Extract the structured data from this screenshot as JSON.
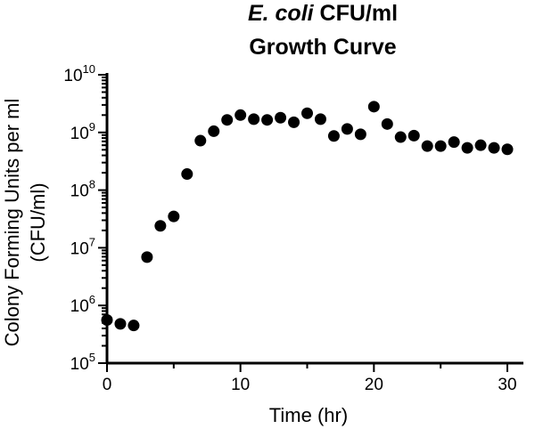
{
  "chart_data": {
    "type": "scatter",
    "title_italic": "E. coli",
    "title_rest": "CFU/ml",
    "subtitle": "Growth Curve",
    "xlabel": "Time (hr)",
    "ylabel_line1": "Colony Forming Units per ml",
    "ylabel_line2": "(CFU/ml)",
    "xlim": [
      0,
      31
    ],
    "ylim": [
      100000,
      10000000000
    ],
    "yscale": "log",
    "x_ticks": [
      0,
      10,
      20,
      30
    ],
    "x_tick_labels": [
      "0",
      "10",
      "20",
      "30"
    ],
    "y_ticks": [
      100000,
      1000000,
      10000000,
      100000000,
      1000000000,
      10000000000
    ],
    "y_tick_labels": [
      {
        "base": "10",
        "exp": "5"
      },
      {
        "base": "10",
        "exp": "6"
      },
      {
        "base": "10",
        "exp": "7"
      },
      {
        "base": "10",
        "exp": "8"
      },
      {
        "base": "10",
        "exp": "9"
      },
      {
        "base": "10",
        "exp": "10"
      }
    ],
    "grid": false,
    "marker_color": "#000000",
    "points": [
      {
        "x": 0,
        "y": 560000
      },
      {
        "x": 1,
        "y": 480000
      },
      {
        "x": 2,
        "y": 450000
      },
      {
        "x": 3,
        "y": 6900000
      },
      {
        "x": 4,
        "y": 24000000
      },
      {
        "x": 5,
        "y": 35000000
      },
      {
        "x": 6,
        "y": 190000000
      },
      {
        "x": 7,
        "y": 720000000
      },
      {
        "x": 8,
        "y": 1050000000
      },
      {
        "x": 9,
        "y": 1650000000
      },
      {
        "x": 10,
        "y": 2000000000
      },
      {
        "x": 11,
        "y": 1700000000
      },
      {
        "x": 12,
        "y": 1650000000
      },
      {
        "x": 13,
        "y": 1800000000
      },
      {
        "x": 14,
        "y": 1500000000
      },
      {
        "x": 15,
        "y": 2150000000
      },
      {
        "x": 16,
        "y": 1700000000
      },
      {
        "x": 17,
        "y": 870000000
      },
      {
        "x": 18,
        "y": 1150000000
      },
      {
        "x": 19,
        "y": 930000000
      },
      {
        "x": 20,
        "y": 2800000000
      },
      {
        "x": 21,
        "y": 1400000000
      },
      {
        "x": 22,
        "y": 830000000
      },
      {
        "x": 23,
        "y": 880000000
      },
      {
        "x": 24,
        "y": 580000000
      },
      {
        "x": 25,
        "y": 580000000
      },
      {
        "x": 26,
        "y": 680000000
      },
      {
        "x": 27,
        "y": 540000000
      },
      {
        "x": 28,
        "y": 600000000
      },
      {
        "x": 29,
        "y": 540000000
      },
      {
        "x": 30,
        "y": 510000000
      }
    ]
  }
}
